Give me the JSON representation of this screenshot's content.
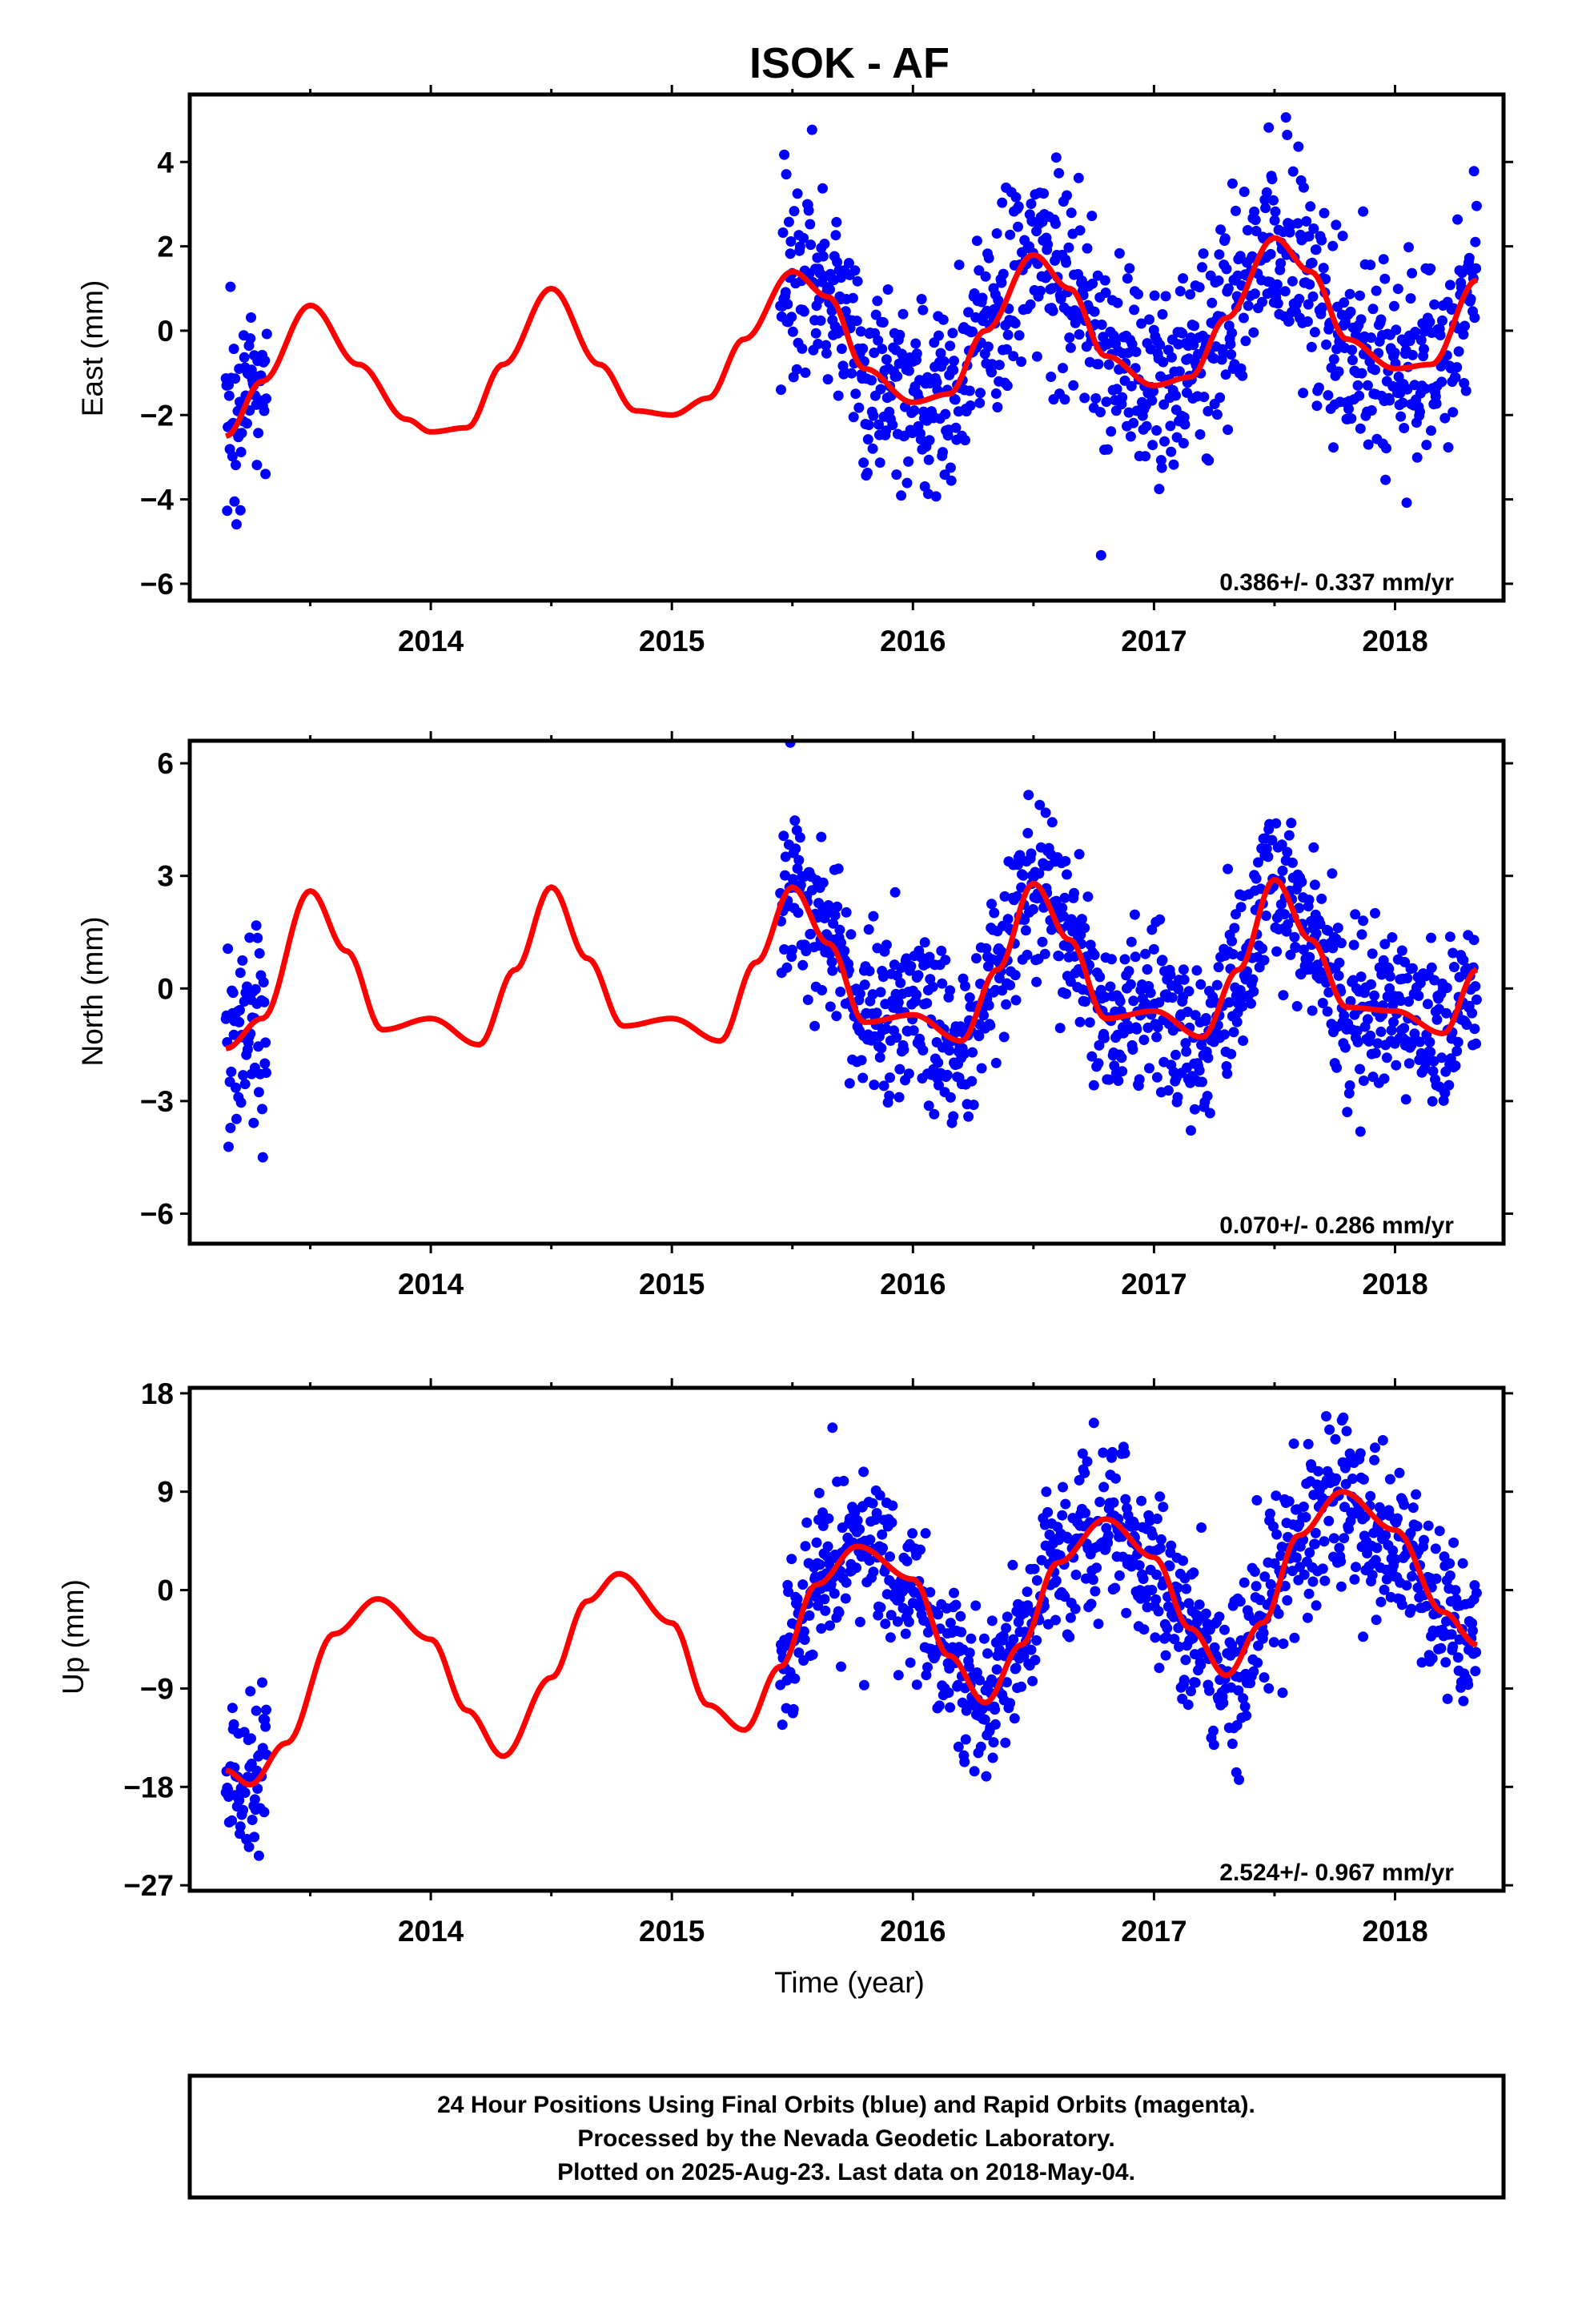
{
  "chart_data": {
    "type": "scatter",
    "title": "ISOK - AF",
    "xlabel": "Time (year)",
    "xlim": [
      2013.0,
      2018.45
    ],
    "x_tick_labels": [
      "2014",
      "2015",
      "2016",
      "2017",
      "2018"
    ],
    "x_ticks": [
      2014,
      2015,
      2016,
      2017,
      2018
    ],
    "colors": {
      "observations": "#0000ff",
      "model_fit": "#ff0000",
      "frame": "#000000"
    },
    "series_info": [
      "Final Orbits (blue)",
      "model fit (red line)"
    ],
    "panels": [
      {
        "ylabel": "East (mm)",
        "ylim": [
          -6.4,
          5.6
        ],
        "yticks": [
          -6,
          -4,
          -2,
          0,
          2,
          4
        ],
        "ytick_labels": [
          "−6",
          "−4",
          "−2",
          "0",
          "2",
          "4"
        ],
        "rate_text": "0.386+/- 0.337 mm/yr",
        "trend_rate": 0.386,
        "observation_segments": [
          [
            2013.15,
            2013.32
          ],
          [
            2015.45,
            2018.34
          ]
        ],
        "observation_spread": 1.25,
        "model_fit": {
          "x": [
            2013.15,
            2013.3,
            2013.5,
            2013.7,
            2013.9,
            2014.0,
            2014.15,
            2014.3,
            2014.5,
            2014.7,
            2014.85,
            2015.0,
            2015.15,
            2015.3,
            2015.5,
            2015.65,
            2015.8,
            2016.0,
            2016.15,
            2016.3,
            2016.5,
            2016.65,
            2016.8,
            2017.0,
            2017.15,
            2017.3,
            2017.5,
            2017.65,
            2017.8,
            2018.0,
            2018.15,
            2018.34
          ],
          "y": [
            -2.5,
            -1.2,
            0.6,
            -0.8,
            -2.1,
            -2.4,
            -2.3,
            -0.8,
            1.0,
            -0.8,
            -1.9,
            -2.0,
            -1.6,
            -0.2,
            1.4,
            0.8,
            -0.9,
            -1.7,
            -1.5,
            0.0,
            1.8,
            1.0,
            -0.6,
            -1.3,
            -1.1,
            0.3,
            2.2,
            1.4,
            -0.2,
            -0.9,
            -0.8,
            1.2
          ]
        }
      },
      {
        "ylabel": "North (mm)",
        "ylim": [
          -6.8,
          6.6
        ],
        "yticks": [
          -6,
          -3,
          0,
          3,
          6
        ],
        "ytick_labels": [
          "−6",
          "−3",
          "0",
          "3",
          "6"
        ],
        "rate_text": "0.070+/- 0.286 mm/yr",
        "trend_rate": 0.07,
        "observation_segments": [
          [
            2013.15,
            2013.32
          ],
          [
            2015.45,
            2018.34
          ]
        ],
        "observation_spread": 1.1,
        "model_fit": {
          "x": [
            2013.15,
            2013.3,
            2013.5,
            2013.65,
            2013.8,
            2014.0,
            2014.2,
            2014.35,
            2014.5,
            2014.65,
            2014.8,
            2015.0,
            2015.2,
            2015.35,
            2015.5,
            2015.65,
            2015.8,
            2016.0,
            2016.2,
            2016.35,
            2016.5,
            2016.65,
            2016.8,
            2017.0,
            2017.2,
            2017.35,
            2017.5,
            2017.65,
            2017.8,
            2018.0,
            2018.2,
            2018.34
          ],
          "y": [
            -1.6,
            -0.8,
            2.6,
            1.0,
            -1.1,
            -0.8,
            -1.5,
            0.5,
            2.7,
            0.8,
            -1.0,
            -0.8,
            -1.4,
            0.7,
            2.7,
            1.2,
            -0.9,
            -0.7,
            -1.4,
            0.5,
            2.8,
            1.3,
            -0.8,
            -0.6,
            -1.3,
            0.5,
            2.9,
            1.3,
            -0.5,
            -0.6,
            -1.2,
            0.5
          ]
        }
      },
      {
        "ylabel": "Up (mm)",
        "ylim": [
          -27.5,
          18.5
        ],
        "yticks": [
          -27,
          -18,
          -9,
          0,
          9,
          18
        ],
        "ytick_labels": [
          "−27",
          "−18",
          "−9",
          "0",
          "9",
          "18"
        ],
        "rate_text": "2.524+/- 0.967 mm/yr",
        "trend_rate": 2.524,
        "observation_segments": [
          [
            2013.15,
            2013.32
          ],
          [
            2015.45,
            2018.34
          ]
        ],
        "observation_spread": 3.8,
        "model_fit": {
          "x": [
            2013.15,
            2013.25,
            2013.4,
            2013.6,
            2013.78,
            2014.0,
            2014.15,
            2014.3,
            2014.5,
            2014.65,
            2014.78,
            2015.0,
            2015.15,
            2015.3,
            2015.45,
            2015.6,
            2015.77,
            2016.0,
            2016.15,
            2016.3,
            2016.45,
            2016.6,
            2016.8,
            2017.0,
            2017.15,
            2017.3,
            2017.45,
            2017.6,
            2017.78,
            2018.0,
            2018.2,
            2018.34
          ],
          "y": [
            -16.5,
            -17.8,
            -14.0,
            -4.0,
            -0.8,
            -4.5,
            -11.0,
            -15.2,
            -8.0,
            -1.0,
            1.5,
            -3.0,
            -10.5,
            -12.8,
            -7.0,
            0.5,
            4.0,
            1.0,
            -6.0,
            -10.3,
            -5.0,
            2.5,
            6.5,
            3.0,
            -3.5,
            -7.8,
            -3.0,
            5.0,
            9.0,
            5.5,
            -2.0,
            -5.0
          ]
        }
      }
    ],
    "footer": [
      "24 Hour Positions Using Final Orbits (blue) and Rapid Orbits (magenta).",
      "Processed by the Nevada Geodetic Laboratory.",
      "Plotted on 2025-Aug-23. Last data on 2018-May-04."
    ]
  }
}
